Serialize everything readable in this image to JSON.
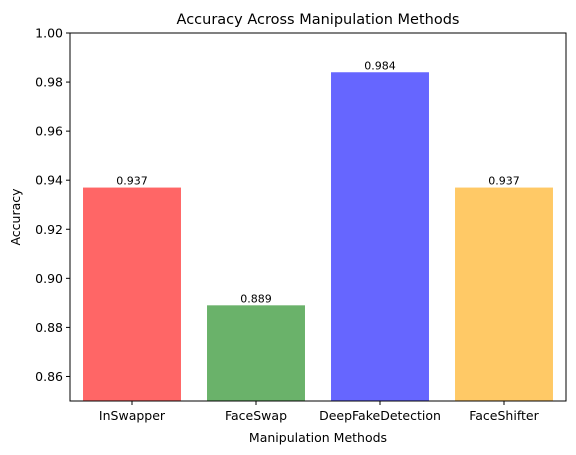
{
  "chart_data": {
    "type": "bar",
    "title": "Accuracy Across Manipulation Methods",
    "xlabel": "Manipulation Methods",
    "ylabel": "Accuracy",
    "categories": [
      "InSwapper",
      "FaceSwap",
      "DeepFakeDetection",
      "FaceShifter"
    ],
    "values": [
      0.937,
      0.889,
      0.984,
      0.937
    ],
    "data_labels": [
      "0.937",
      "0.889",
      "0.984",
      "0.937"
    ],
    "colors": [
      "#ff6666",
      "#6ab26a",
      "#6666ff",
      "#ffc966"
    ],
    "ylim": [
      0.85,
      1.0
    ],
    "yticks": [
      0.86,
      0.88,
      0.9,
      0.92,
      0.94,
      0.96,
      0.98,
      1.0
    ],
    "ytick_labels": [
      "0.86",
      "0.88",
      "0.90",
      "0.92",
      "0.94",
      "0.96",
      "0.98",
      "1.00"
    ],
    "grid": false,
    "legend": "none"
  }
}
